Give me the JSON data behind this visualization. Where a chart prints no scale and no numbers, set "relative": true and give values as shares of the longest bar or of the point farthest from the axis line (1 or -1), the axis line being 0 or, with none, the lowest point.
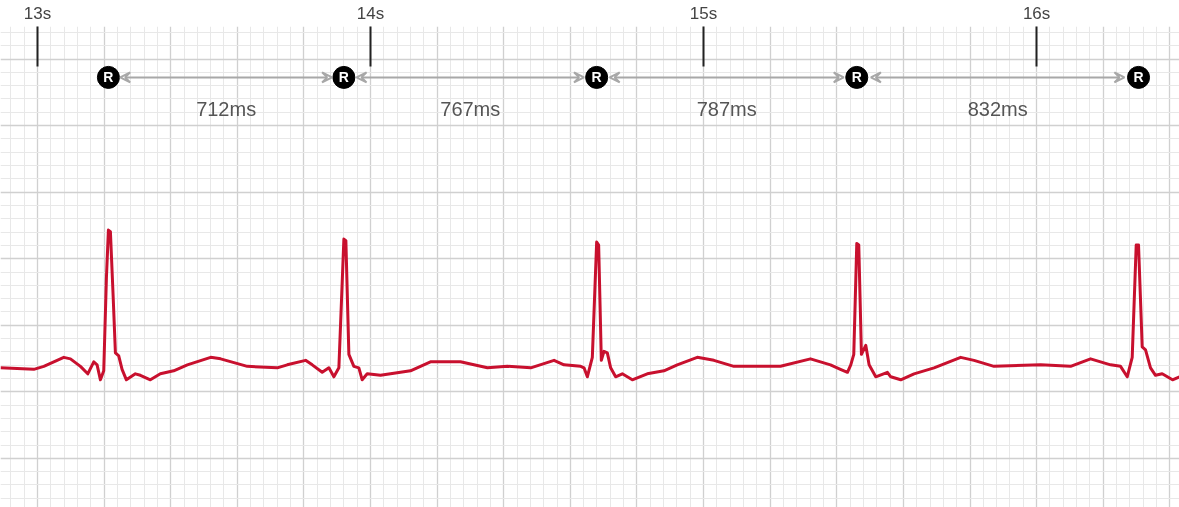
{
  "chart_data": {
    "type": "line",
    "relative": true,
    "x": [
      12.889,
      12.989,
      13.019,
      13.079,
      13.099,
      13.129,
      13.151,
      13.169,
      13.179,
      13.189,
      13.199,
      13.207,
      13.213,
      13.219,
      13.227,
      13.234,
      13.244,
      13.254,
      13.267,
      13.294,
      13.309,
      13.339,
      13.369,
      13.409,
      13.45,
      13.52,
      13.55,
      13.63,
      13.72,
      13.75,
      13.805,
      13.825,
      13.855,
      13.875,
      13.89,
      13.905,
      13.92,
      13.926,
      13.935,
      13.95,
      13.965,
      13.975,
      13.99,
      14.03,
      14.06,
      14.12,
      14.18,
      14.27,
      14.351,
      14.411,
      14.481,
      14.551,
      14.581,
      14.631,
      14.641,
      14.651,
      14.666,
      14.679,
      14.685,
      14.693,
      14.701,
      14.711,
      14.721,
      14.736,
      14.756,
      14.786,
      14.831,
      14.881,
      14.921,
      14.981,
      15.031,
      15.091,
      15.161,
      15.231,
      15.321,
      15.381,
      15.411,
      15.432,
      15.442,
      15.451,
      15.46,
      15.466,
      15.474,
      15.487,
      15.497,
      15.517,
      15.552,
      15.562,
      15.592,
      15.632,
      15.692,
      15.772,
      15.812,
      15.872,
      16.012,
      16.102,
      16.162,
      16.222,
      16.252,
      16.272,
      16.287,
      16.299,
      16.306,
      16.317,
      16.327,
      16.342,
      16.357,
      16.377,
      16.408,
      16.429
    ],
    "series": [
      {
        "color": "#c8102e",
        "values": [
          0.08,
          0.07,
          0.09,
          0.15,
          0.14,
          0.09,
          0.04,
          0.12,
          0.1,
          0.0,
          0.06,
          0.68,
          1.0,
          0.99,
          0.57,
          0.18,
          0.16,
          0.07,
          0.0,
          0.04,
          0.03,
          0.0,
          0.04,
          0.06,
          0.1,
          0.15,
          0.14,
          0.09,
          0.08,
          0.1,
          0.13,
          0.1,
          0.05,
          0.08,
          0.02,
          0.08,
          0.94,
          0.93,
          0.17,
          0.09,
          0.08,
          0.0,
          0.04,
          0.03,
          0.04,
          0.06,
          0.12,
          0.12,
          0.08,
          0.09,
          0.08,
          0.13,
          0.1,
          0.09,
          0.08,
          0.02,
          0.15,
          0.92,
          0.9,
          0.13,
          0.19,
          0.18,
          0.08,
          0.02,
          0.04,
          0.0,
          0.04,
          0.06,
          0.1,
          0.15,
          0.13,
          0.09,
          0.09,
          0.09,
          0.14,
          0.1,
          0.07,
          0.05,
          0.1,
          0.17,
          0.91,
          0.9,
          0.17,
          0.23,
          0.1,
          0.02,
          0.05,
          0.02,
          0.0,
          0.04,
          0.08,
          0.15,
          0.13,
          0.09,
          0.1,
          0.09,
          0.14,
          0.1,
          0.09,
          0.02,
          0.15,
          0.9,
          0.9,
          0.22,
          0.2,
          0.08,
          0.03,
          0.04,
          0.0,
          0.02
        ]
      }
    ],
    "xlim": [
      12.889,
      16.429
    ],
    "xticks": [
      {
        "value": 13,
        "label": "13s"
      },
      {
        "value": 14,
        "label": "14s"
      },
      {
        "value": 15,
        "label": "15s"
      },
      {
        "value": 16,
        "label": "16s"
      }
    ],
    "grid": true,
    "annotations": [
      "R",
      "712ms",
      "R",
      "767ms",
      "R",
      "787ms",
      "R",
      "832ms",
      "R"
    ]
  }
}
